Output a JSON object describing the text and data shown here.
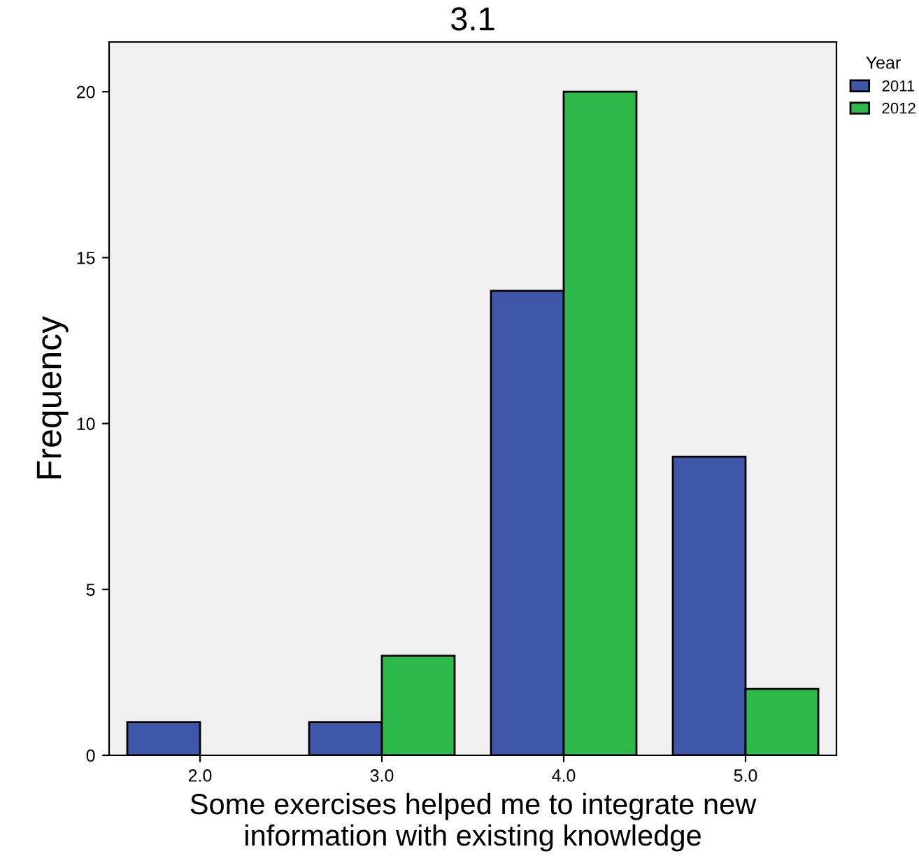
{
  "chart_data": {
    "type": "bar",
    "title": "3.1",
    "xlabel": "Some exercises helped me to integrate new\ninformation with existing knowledge",
    "ylabel": "Frequency",
    "legend_title": "Year",
    "categories": [
      "2.0",
      "3.0",
      "4.0",
      "5.0"
    ],
    "series": [
      {
        "name": "2011",
        "color": "#3f57a8",
        "values": [
          1,
          1,
          14,
          9
        ]
      },
      {
        "name": "2012",
        "color": "#2db84a",
        "values": [
          null,
          3,
          20,
          2
        ]
      }
    ],
    "ylim": [
      0,
      21.5
    ],
    "yticks": [
      0,
      5,
      10,
      15,
      20
    ],
    "grid": false,
    "legend": "top right"
  }
}
